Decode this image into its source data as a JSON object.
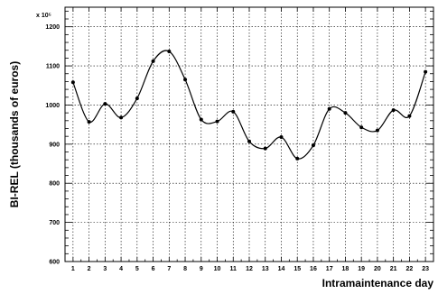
{
  "chart_data": {
    "type": "line",
    "xlabel": "Intramaintenance day",
    "ylabel": "BI-REL (thousands of euros)",
    "y_multiplier": "x 10⁵",
    "xlim": [
      0.5,
      23.5
    ],
    "ylim": [
      600,
      1250
    ],
    "grid": true,
    "smooth": true,
    "x_ticks": [
      1,
      2,
      3,
      4,
      5,
      6,
      7,
      8,
      9,
      10,
      11,
      12,
      13,
      14,
      15,
      16,
      17,
      18,
      19,
      20,
      21,
      22,
      23
    ],
    "y_ticks": [
      600,
      700,
      800,
      900,
      1000,
      1100,
      1200
    ],
    "x": [
      1,
      2,
      3,
      4,
      5,
      6,
      7,
      8,
      9,
      10,
      11,
      12,
      13,
      14,
      15,
      16,
      17,
      18,
      19,
      20,
      21,
      22,
      23
    ],
    "values": [
      1058,
      957,
      1003,
      968,
      1017,
      1112,
      1137,
      1065,
      963,
      958,
      983,
      907,
      889,
      918,
      863,
      897,
      990,
      980,
      943,
      935,
      987,
      972,
      1085
    ],
    "colors": {
      "line": "#000000",
      "grid": "#000000",
      "background": "#ffffff"
    }
  }
}
